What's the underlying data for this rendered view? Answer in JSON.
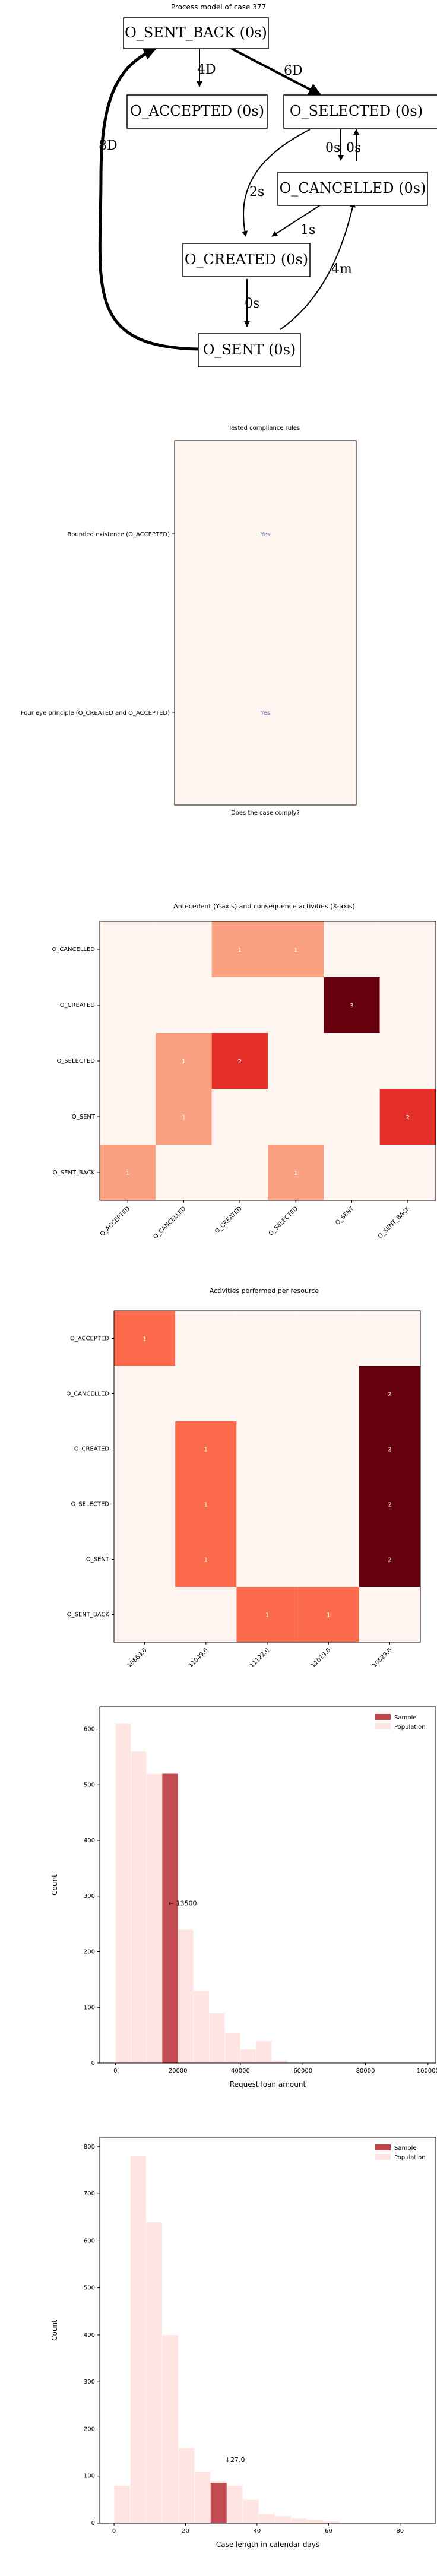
{
  "process_model": {
    "title": "Process model of case 377",
    "nodes": [
      {
        "id": "sent_back",
        "label": "O_SENT_BACK (0s)"
      },
      {
        "id": "accepted",
        "label": "O_ACCEPTED (0s)"
      },
      {
        "id": "selected",
        "label": "O_SELECTED (0s)"
      },
      {
        "id": "cancelled",
        "label": "O_CANCELLED (0s)"
      },
      {
        "id": "created",
        "label": "O_CREATED (0s)"
      },
      {
        "id": "sent",
        "label": "O_SENT (0s)"
      }
    ],
    "edges": [
      {
        "from": "sent_back",
        "to": "accepted",
        "label": "4D"
      },
      {
        "from": "sent_back",
        "to": "selected",
        "label": "6D"
      },
      {
        "from": "sent",
        "to": "sent_back",
        "label": "8D"
      },
      {
        "from": "selected",
        "to": "cancelled",
        "label": "0s"
      },
      {
        "from": "cancelled",
        "to": "selected",
        "label": "0s"
      },
      {
        "from": "selected",
        "to": "created",
        "label": "2s"
      },
      {
        "from": "cancelled",
        "to": "created",
        "label": "1s"
      },
      {
        "from": "created",
        "to": "sent",
        "label": "0s"
      },
      {
        "from": "sent",
        "to": "cancelled",
        "label": "4m"
      }
    ]
  },
  "chart_data": [
    {
      "type": "table",
      "title": "Tested compliance rules",
      "xlabel": "Does the case comply?",
      "rows": [
        "Bounded existence (O_ACCEPTED)",
        "Four eye principle (O_CREATED and O_ACCEPTED)"
      ],
      "values": [
        "Yes",
        "Yes"
      ]
    },
    {
      "type": "heatmap",
      "title": "Antecedent (Y-axis) and consequence activities (X-axis)",
      "x": [
        "O_ACCEPTED",
        "O_CANCELLED",
        "O_CREATED",
        "O_SELECTED",
        "O_SENT",
        "O_SENT_BACK"
      ],
      "y": [
        "O_CANCELLED",
        "O_CREATED",
        "O_SELECTED",
        "O_SENT",
        "O_SENT_BACK"
      ],
      "values": [
        [
          0,
          0,
          1,
          1,
          0,
          0
        ],
        [
          0,
          0,
          0,
          0,
          3,
          0
        ],
        [
          0,
          1,
          2,
          0,
          0,
          0
        ],
        [
          0,
          1,
          0,
          0,
          0,
          2
        ],
        [
          1,
          0,
          0,
          1,
          0,
          0
        ]
      ],
      "colormap": "Reds"
    },
    {
      "type": "heatmap",
      "title": "Activities performed per resource",
      "x": [
        "10863.0",
        "11049.0",
        "11122.0",
        "11019.0",
        "10629.0"
      ],
      "y": [
        "O_ACCEPTED",
        "O_CANCELLED",
        "O_CREATED",
        "O_SELECTED",
        "O_SENT",
        "O_SENT_BACK"
      ],
      "values": [
        [
          1,
          0,
          0,
          0,
          0
        ],
        [
          0,
          0,
          0,
          0,
          2
        ],
        [
          0,
          1,
          0,
          0,
          2
        ],
        [
          0,
          1,
          0,
          0,
          2
        ],
        [
          0,
          1,
          0,
          0,
          2
        ],
        [
          0,
          0,
          1,
          1,
          0
        ]
      ],
      "colormap": "Reds"
    },
    {
      "type": "bar",
      "xlabel": "Request loan amount",
      "ylabel": "Count",
      "xlim": [
        -5000,
        102500
      ],
      "ylim": [
        0,
        640
      ],
      "xticks": [
        0,
        20000,
        40000,
        60000,
        80000,
        100000
      ],
      "yticks": [
        0,
        100,
        200,
        300,
        400,
        500,
        600
      ],
      "legend": [
        "Sample",
        "Population"
      ],
      "legend_position": "top-right",
      "bin_width": 5000,
      "series": [
        {
          "name": "Population",
          "bins": [
            0,
            5000,
            10000,
            15000,
            20000,
            25000,
            30000,
            35000,
            40000,
            45000,
            50000
          ],
          "values": [
            610,
            560,
            520,
            520,
            240,
            130,
            90,
            55,
            25,
            40,
            5
          ]
        },
        {
          "name": "Sample",
          "bins": [
            15000
          ],
          "values": [
            520
          ]
        }
      ],
      "annotation": {
        "text": "← 13500",
        "x": 17000,
        "y": 283
      }
    },
    {
      "type": "bar",
      "xlabel": "Case length in calendar days",
      "ylabel": "Count",
      "xlim": [
        -4,
        90
      ],
      "ylim": [
        0,
        820
      ],
      "xticks": [
        0,
        20,
        40,
        60,
        80
      ],
      "yticks": [
        0,
        100,
        200,
        300,
        400,
        500,
        600,
        700,
        800
      ],
      "legend": [
        "Sample",
        "Population"
      ],
      "legend_position": "top-right",
      "bin_width": 4.5,
      "series": [
        {
          "name": "Population",
          "bins": [
            0,
            4.5,
            9,
            13.5,
            18,
            22.5,
            27,
            31.5,
            36,
            40.5,
            45,
            49.5,
            54,
            58.5
          ],
          "values": [
            80,
            780,
            640,
            400,
            160,
            110,
            90,
            80,
            50,
            20,
            15,
            10,
            8,
            4
          ]
        },
        {
          "name": "Sample",
          "bins": [
            27
          ],
          "values": [
            85
          ]
        }
      ],
      "annotation": {
        "text": "↓27.0",
        "x": 31,
        "y": 130
      }
    }
  ],
  "colors": {
    "sample": "#c0454b",
    "population": "#fee5e2",
    "heat_low": "#fff5f0",
    "heat_high": "#67000d",
    "compliance_fill": "#fff5f0",
    "compliance_text": "#5a6fa5"
  }
}
